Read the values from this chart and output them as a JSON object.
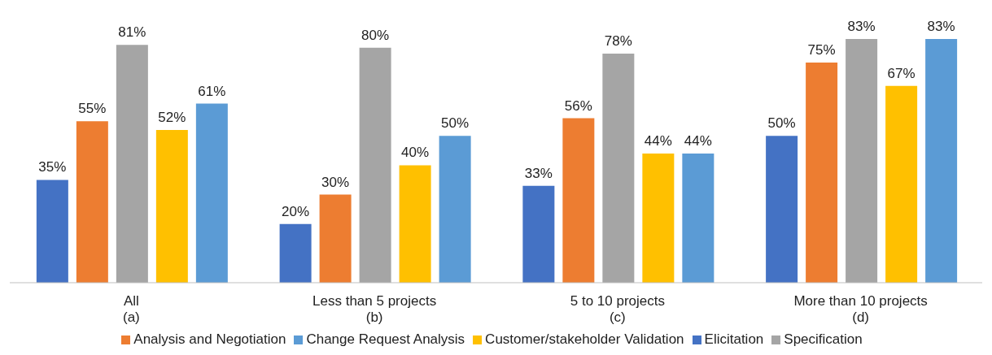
{
  "chart_data": {
    "type": "bar",
    "categories": [
      "All\n(a)",
      "Less than 5 projects\n(b)",
      "5 to 10 projects\n(c)",
      "More than 10 projects\n(d)"
    ],
    "series": [
      {
        "name": "Elicitation",
        "color": "#4472c4",
        "values": [
          35,
          20,
          33,
          50
        ],
        "value_labels": [
          "35%",
          "20%",
          "33%",
          "50%"
        ]
      },
      {
        "name": "Analysis and Negotiation",
        "color": "#ed7d31",
        "values": [
          55,
          30,
          56,
          75
        ],
        "value_labels": [
          "55%",
          "30%",
          "56%",
          "75%"
        ]
      },
      {
        "name": "Specification",
        "color": "#a5a5a5",
        "values": [
          81,
          80,
          78,
          83
        ],
        "value_labels": [
          "81%",
          "80%",
          "78%",
          "83%"
        ]
      },
      {
        "name": "Customer/stakeholder Validation",
        "color": "#ffc000",
        "values": [
          52,
          40,
          44,
          67
        ],
        "value_labels": [
          "52%",
          "40%",
          "44%",
          "67%"
        ]
      },
      {
        "name": "Change Request Analysis",
        "color": "#5b9bd5",
        "values": [
          61,
          50,
          44,
          83
        ],
        "value_labels": [
          "61%",
          "50%",
          "44%",
          "83%"
        ]
      }
    ],
    "legend": "bottom"
  }
}
